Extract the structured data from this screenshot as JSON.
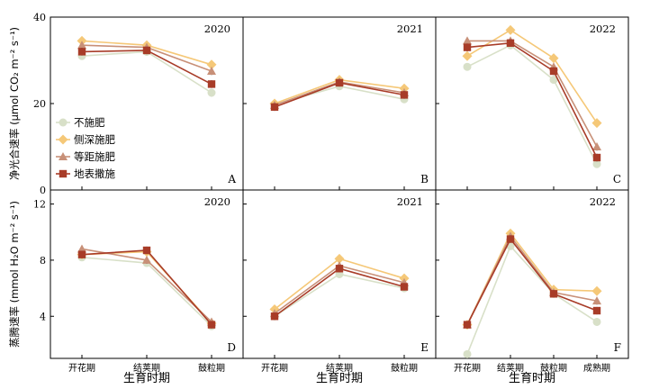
{
  "colors": {
    "none": "#d8e0c8",
    "side": "#f5c878",
    "equal": "#c89078",
    "surface": "#a83c28"
  },
  "legend": [
    {
      "key": "none",
      "name": "不施肥",
      "marker": "circle"
    },
    {
      "key": "side",
      "name": "侧深施肥",
      "marker": "diamond"
    },
    {
      "key": "equal",
      "name": "等距施肥",
      "marker": "triangle"
    },
    {
      "key": "surface",
      "name": "地表撒施",
      "marker": "square"
    }
  ],
  "ylabels": {
    "top": "净光合速率 (μmol CO₂ m⁻² s⁻¹)",
    "bottom": "蒸腾速率 (mmol H₂O m⁻² s⁻¹)"
  },
  "xlabel": "生育时期",
  "chart_data": [
    {
      "type": "line",
      "panel": "A",
      "year": "2020",
      "categories": [
        "开花期",
        "结荚期",
        "鼓粒期"
      ],
      "ylim": [
        0,
        40
      ],
      "yticks": [
        0,
        20,
        40
      ],
      "series": [
        {
          "key": "none",
          "values": [
            31.0,
            32.0,
            22.5
          ]
        },
        {
          "key": "side",
          "values": [
            34.5,
            33.5,
            29.0
          ]
        },
        {
          "key": "equal",
          "values": [
            33.5,
            33.0,
            27.5
          ]
        },
        {
          "key": "surface",
          "values": [
            32.0,
            32.3,
            24.5
          ]
        }
      ]
    },
    {
      "type": "line",
      "panel": "B",
      "year": "2021",
      "categories": [
        "开花期",
        "结荚期",
        "鼓粒期"
      ],
      "ylim": [
        0,
        40
      ],
      "series": [
        {
          "key": "none",
          "values": [
            19.8,
            24.0,
            21.0
          ]
        },
        {
          "key": "side",
          "values": [
            20.0,
            25.5,
            23.5
          ]
        },
        {
          "key": "equal",
          "values": [
            19.6,
            25.0,
            22.5
          ]
        },
        {
          "key": "surface",
          "values": [
            19.2,
            24.8,
            22.0
          ]
        }
      ]
    },
    {
      "type": "line",
      "panel": "C",
      "year": "2022",
      "categories": [
        "开花期",
        "结荚期",
        "鼓粒期",
        "成熟期"
      ],
      "ylim": [
        0,
        40
      ],
      "series": [
        {
          "key": "none",
          "values": [
            28.5,
            33.5,
            25.5,
            6.0
          ]
        },
        {
          "key": "side",
          "values": [
            31.0,
            37.0,
            30.5,
            15.5
          ]
        },
        {
          "key": "equal",
          "values": [
            34.5,
            34.5,
            28.5,
            10.0
          ]
        },
        {
          "key": "surface",
          "values": [
            33.0,
            34.0,
            27.5,
            7.5
          ]
        }
      ]
    },
    {
      "type": "line",
      "panel": "D",
      "year": "2020",
      "categories": [
        "开花期",
        "结荚期",
        "鼓粒期"
      ],
      "ylim": [
        1,
        13
      ],
      "yticks": [
        4,
        8,
        12
      ],
      "series": [
        {
          "key": "none",
          "values": [
            8.2,
            7.8,
            3.3
          ]
        },
        {
          "key": "side",
          "values": [
            8.4,
            8.6,
            3.5
          ]
        },
        {
          "key": "equal",
          "values": [
            8.8,
            8.0,
            3.6
          ]
        },
        {
          "key": "surface",
          "values": [
            8.4,
            8.7,
            3.4
          ]
        }
      ]
    },
    {
      "type": "line",
      "panel": "E",
      "year": "2021",
      "categories": [
        "开花期",
        "结荚期",
        "鼓粒期"
      ],
      "ylim": [
        1,
        13
      ],
      "series": [
        {
          "key": "none",
          "values": [
            4.0,
            7.0,
            6.0
          ]
        },
        {
          "key": "side",
          "values": [
            4.5,
            8.1,
            6.7
          ]
        },
        {
          "key": "equal",
          "values": [
            4.2,
            7.6,
            6.4
          ]
        },
        {
          "key": "surface",
          "values": [
            4.0,
            7.4,
            6.1
          ]
        }
      ]
    },
    {
      "type": "line",
      "panel": "F",
      "year": "2022",
      "categories": [
        "开花期",
        "结荚期",
        "鼓粒期",
        "成熟期"
      ],
      "ylim": [
        1,
        13
      ],
      "series": [
        {
          "key": "none",
          "values": [
            1.3,
            9.0,
            5.6,
            3.6
          ]
        },
        {
          "key": "side",
          "values": [
            3.4,
            9.9,
            5.9,
            5.8
          ]
        },
        {
          "key": "equal",
          "values": [
            3.4,
            9.7,
            5.7,
            5.1
          ]
        },
        {
          "key": "surface",
          "values": [
            3.4,
            9.5,
            5.6,
            4.4
          ]
        }
      ]
    }
  ]
}
